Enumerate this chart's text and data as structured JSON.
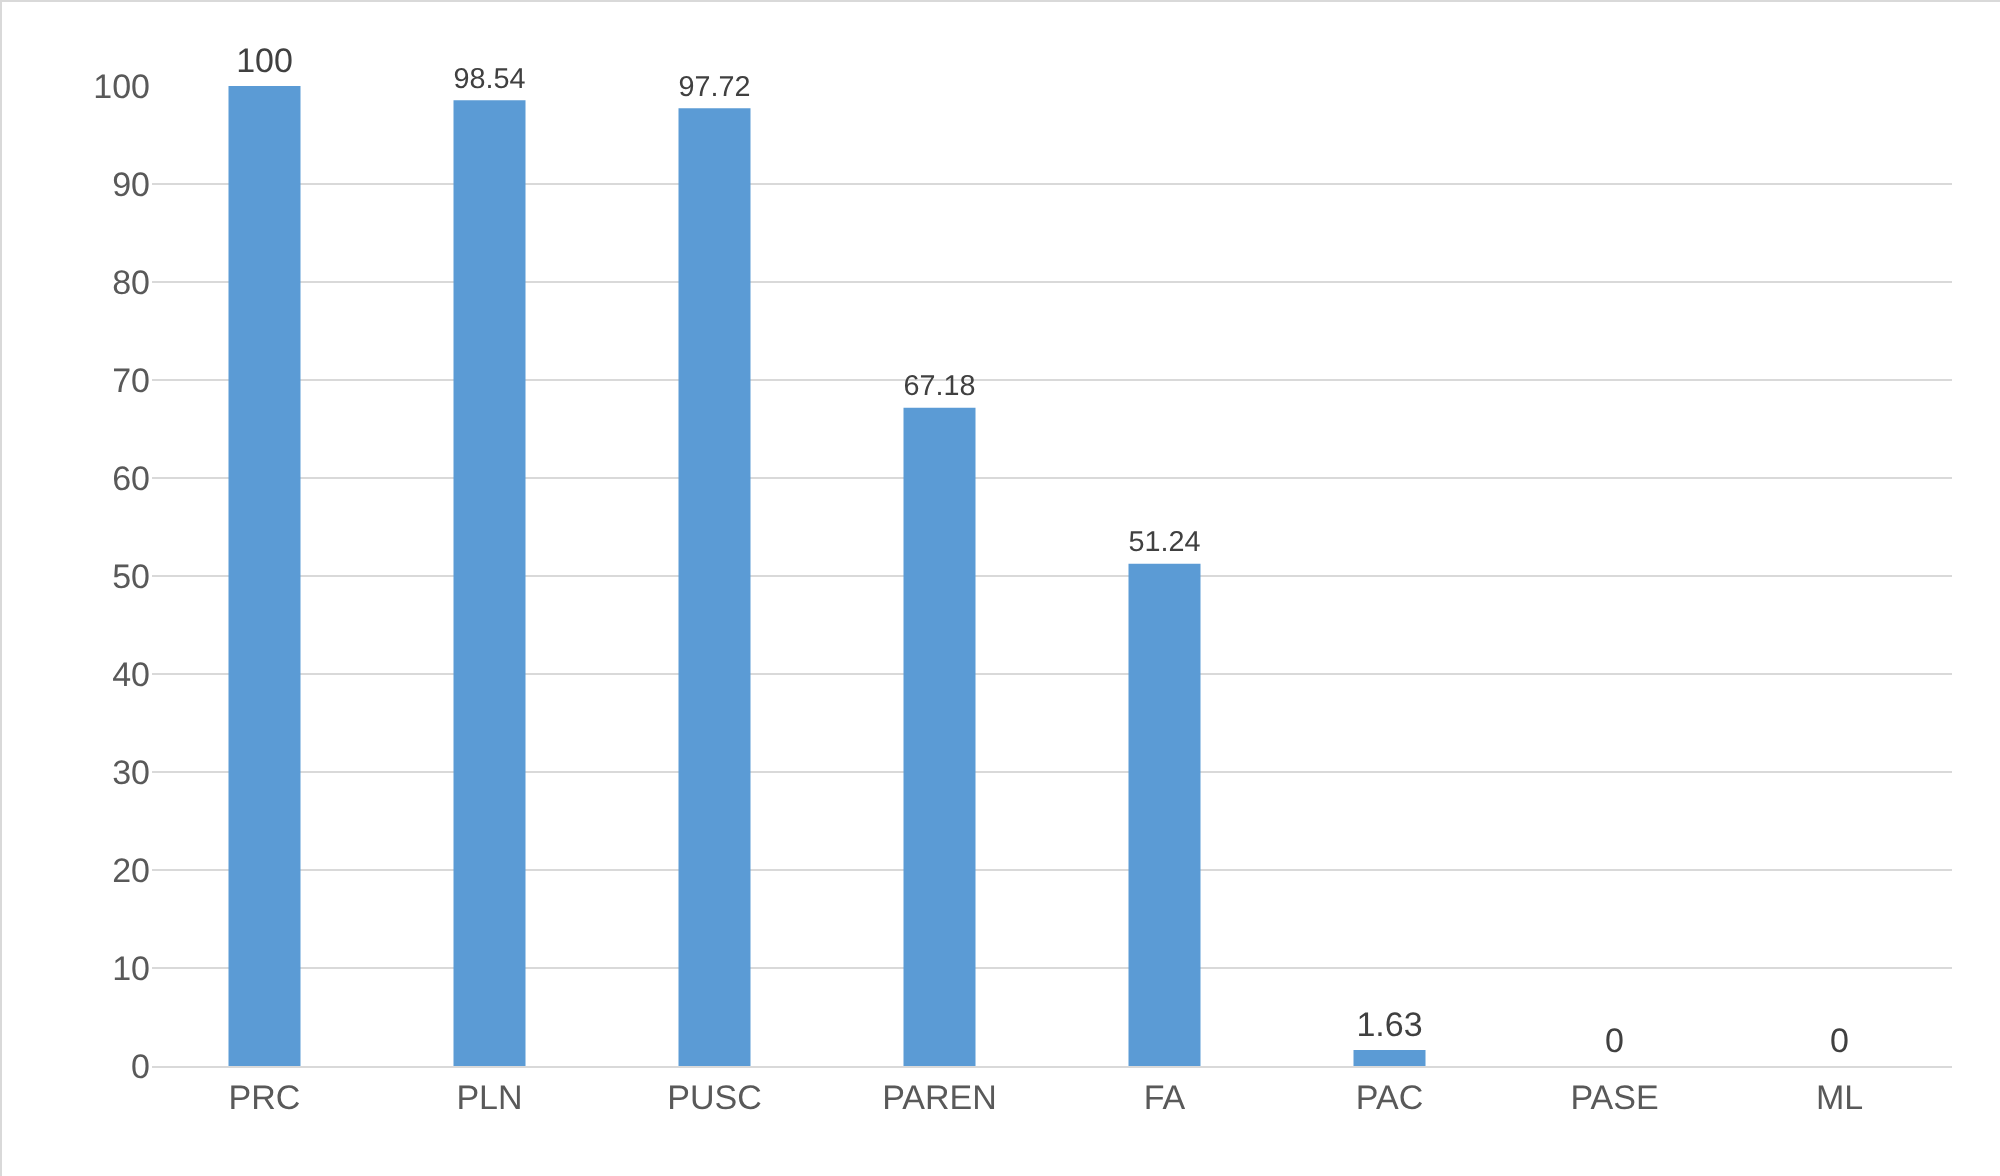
{
  "chart_data": {
    "type": "bar",
    "categories": [
      "PRC",
      "PLN",
      "PUSC",
      "PAREN",
      "FA",
      "PAC",
      "PASE",
      "ML"
    ],
    "values": [
      100,
      98.54,
      97.72,
      67.18,
      51.24,
      1.63,
      0,
      0
    ],
    "color": "#5b9bd5",
    "ylim": [
      0,
      100
    ],
    "yticks": [
      0,
      10,
      20,
      30,
      40,
      50,
      60,
      70,
      80,
      90,
      100
    ],
    "grid": "y",
    "data_labels": true
  }
}
